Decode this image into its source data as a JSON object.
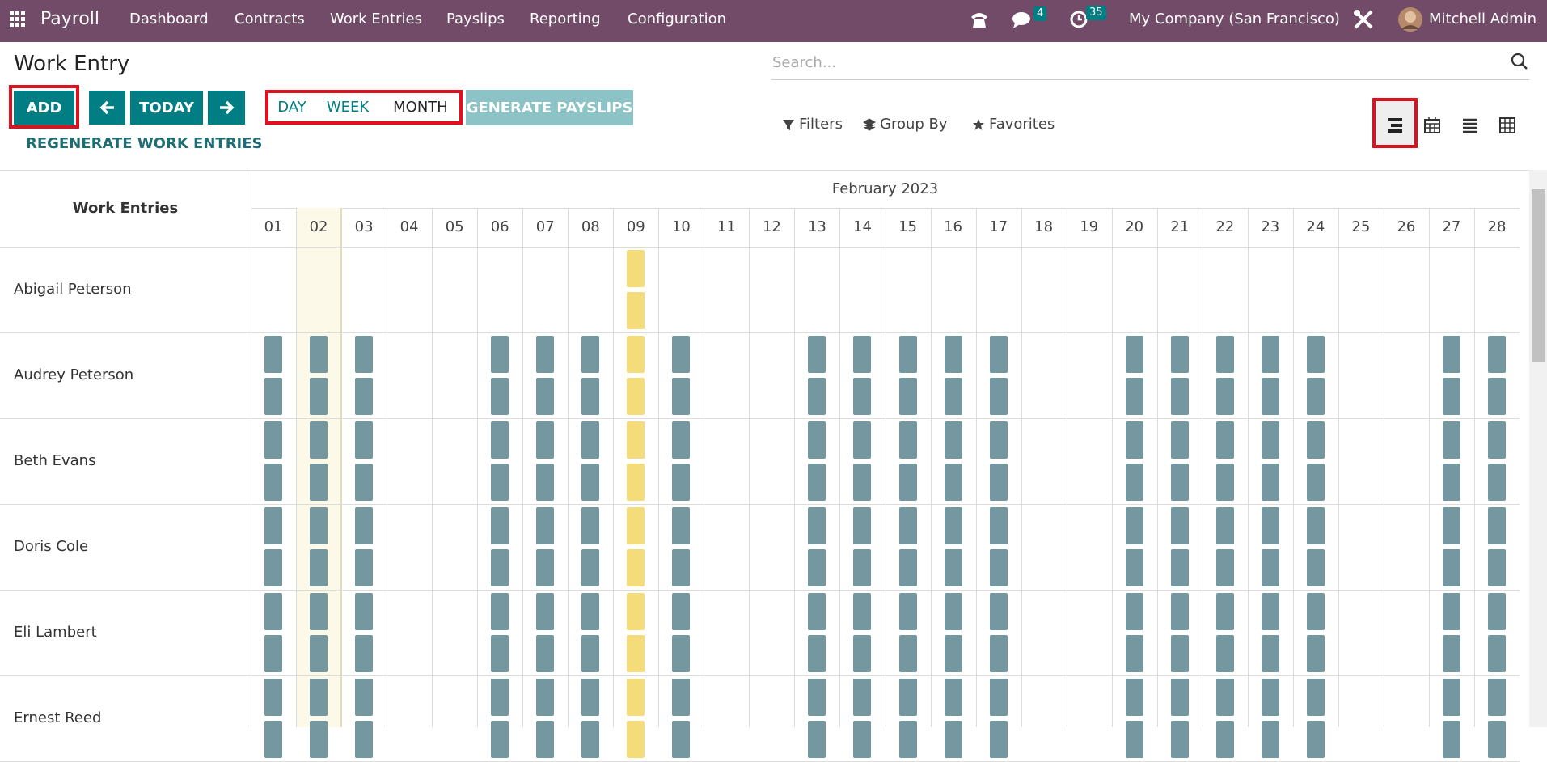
{
  "navbar": {
    "app": "Payroll",
    "menu": [
      "Dashboard",
      "Contracts",
      "Work Entries",
      "Payslips",
      "Reporting",
      "Configuration"
    ],
    "chat_count": 4,
    "activity_count": 35,
    "company": "My Company (San Francisco)",
    "user": "Mitchell Admin"
  },
  "page": {
    "title": "Work Entry",
    "add": "ADD",
    "today": "TODAY",
    "scales": [
      "DAY",
      "WEEK",
      "MONTH"
    ],
    "generate": "GENERATE PAYSLIPS",
    "regenerate": "REGENERATE WORK ENTRIES",
    "search_placeholder": "Search...",
    "filters": [
      "Filters",
      "Group By",
      "Favorites"
    ]
  },
  "gantt": {
    "header": "Work Entries",
    "month": "February 2023",
    "days": [
      "01",
      "02",
      "03",
      "04",
      "05",
      "06",
      "07",
      "08",
      "09",
      "10",
      "11",
      "12",
      "13",
      "14",
      "15",
      "16",
      "17",
      "18",
      "19",
      "20",
      "21",
      "22",
      "23",
      "24",
      "25",
      "26",
      "27",
      "28"
    ],
    "rows": [
      "Abigail Peterson",
      "Audrey Peterson",
      "Beth Evans",
      "Doris Cole",
      "Eli Lambert",
      "Ernest Reed"
    ]
  }
}
